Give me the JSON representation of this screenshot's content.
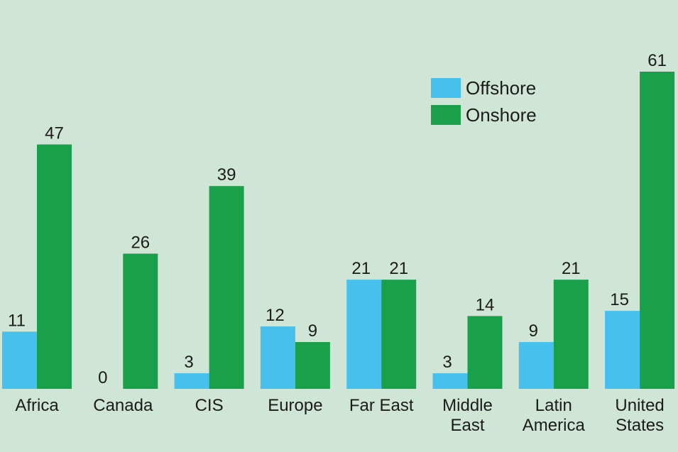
{
  "chart_data": {
    "type": "bar",
    "categories": [
      [
        "Africa"
      ],
      [
        "Canada"
      ],
      [
        "CIS"
      ],
      [
        "Europe"
      ],
      [
        "Far East"
      ],
      [
        "Middle",
        "East"
      ],
      [
        "Latin",
        "America"
      ],
      [
        "United",
        "States"
      ]
    ],
    "series": [
      {
        "name": "Offshore",
        "values": [
          11,
          0,
          3,
          12,
          21,
          3,
          9,
          15
        ]
      },
      {
        "name": "Onshore",
        "values": [
          47,
          26,
          39,
          9,
          21,
          14,
          21,
          61
        ]
      }
    ],
    "ylim": [
      0,
      61
    ],
    "grid": false,
    "legend": "top-right",
    "colors": {
      "background": "#cfe6d6",
      "Offshore": "#48c0ee",
      "Onshore": "#1aa04a",
      "text": "#1b1b1b"
    }
  }
}
